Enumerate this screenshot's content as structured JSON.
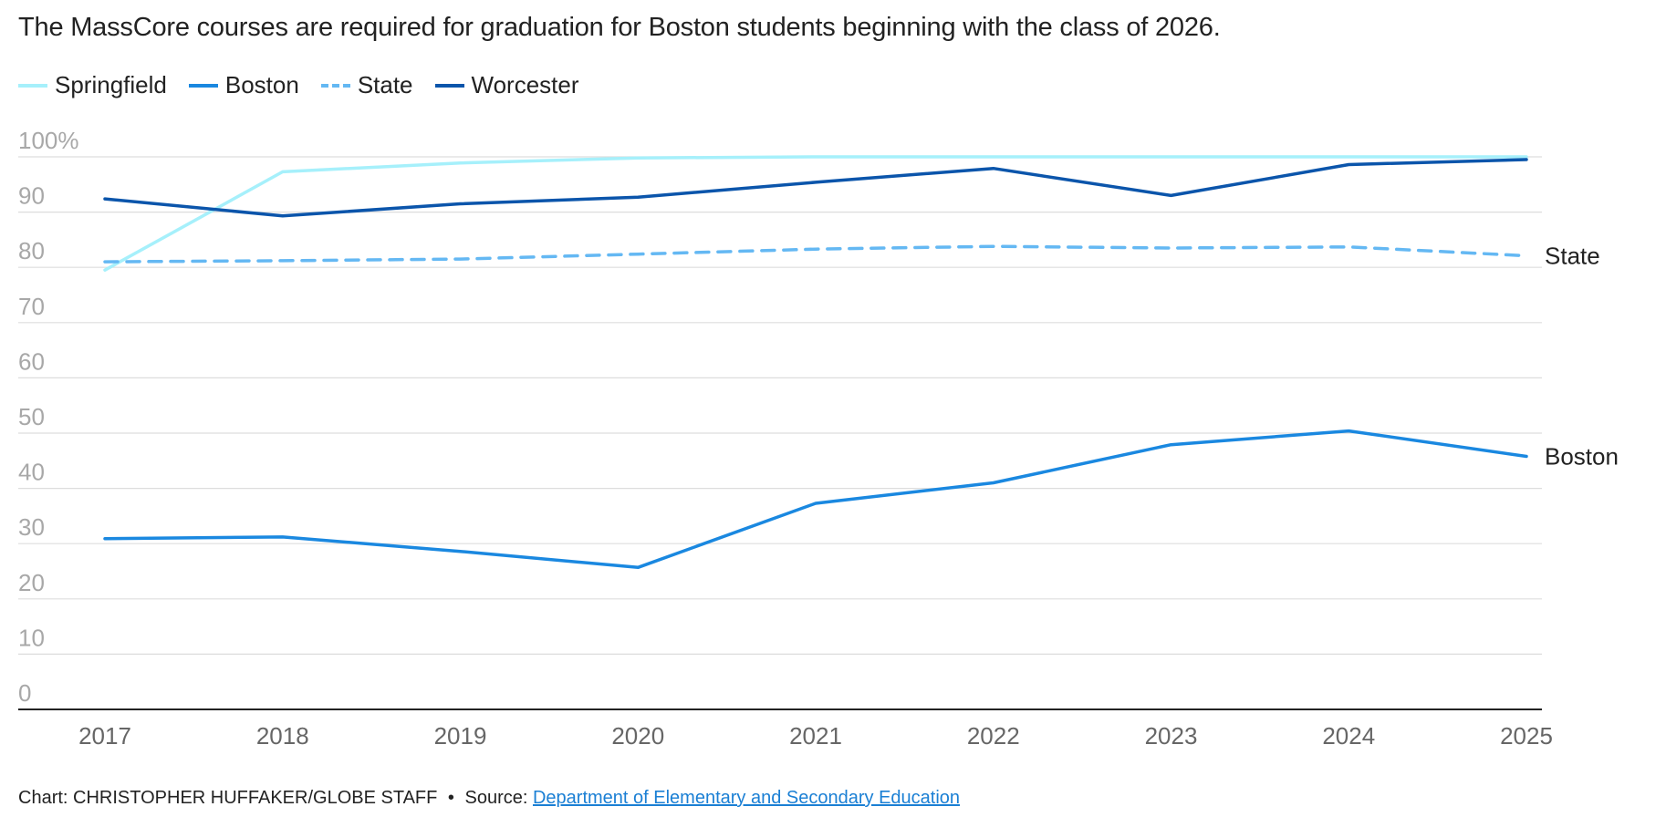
{
  "chart_data": {
    "type": "line",
    "subtitle": "The MassCore courses are required for graduation for Boston students beginning with the class of 2026.",
    "x": [
      2017,
      2018,
      2019,
      2020,
      2021,
      2022,
      2023,
      2024,
      2025
    ],
    "x_tick_labels": [
      "2017",
      "2018",
      "2019",
      "2020",
      "2021",
      "2022",
      "2023",
      "2024",
      "2025"
    ],
    "y_ticks": [
      0,
      10,
      20,
      30,
      40,
      50,
      60,
      70,
      80,
      90,
      100
    ],
    "y_tick_labels": [
      "0",
      "10",
      "20",
      "30",
      "40",
      "50",
      "60",
      "70",
      "80",
      "90",
      "100%"
    ],
    "ylim": [
      0,
      100
    ],
    "grid": true,
    "legend_position": "top-left",
    "series": [
      {
        "name": "Springfield",
        "color": "#a6f0fb",
        "dashed": false,
        "end_label": "",
        "values": [
          79.5,
          97.3,
          98.9,
          99.8,
          100,
          100,
          100,
          100,
          100
        ]
      },
      {
        "name": "Boston",
        "color": "#1a88e0",
        "dashed": false,
        "end_label": "Boston",
        "values": [
          30.9,
          31.2,
          28.6,
          25.7,
          37.3,
          41.0,
          47.9,
          50.4,
          45.8
        ]
      },
      {
        "name": "State",
        "color": "#64b8f3",
        "dashed": true,
        "end_label": "State",
        "values": [
          81.0,
          81.2,
          81.5,
          82.4,
          83.3,
          83.8,
          83.5,
          83.7,
          82.1
        ]
      },
      {
        "name": "Worcester",
        "color": "#0b55ab",
        "dashed": false,
        "end_label": "",
        "values": [
          92.4,
          89.3,
          91.5,
          92.7,
          95.4,
          97.9,
          93.0,
          98.6,
          99.5
        ]
      }
    ]
  },
  "footer": {
    "credit": "Chart: CHRISTOPHER HUFFAKER/GLOBE STAFF",
    "separator": "•",
    "source_prefix": "Source:",
    "source_link": "Department of Elementary and Secondary Education"
  }
}
